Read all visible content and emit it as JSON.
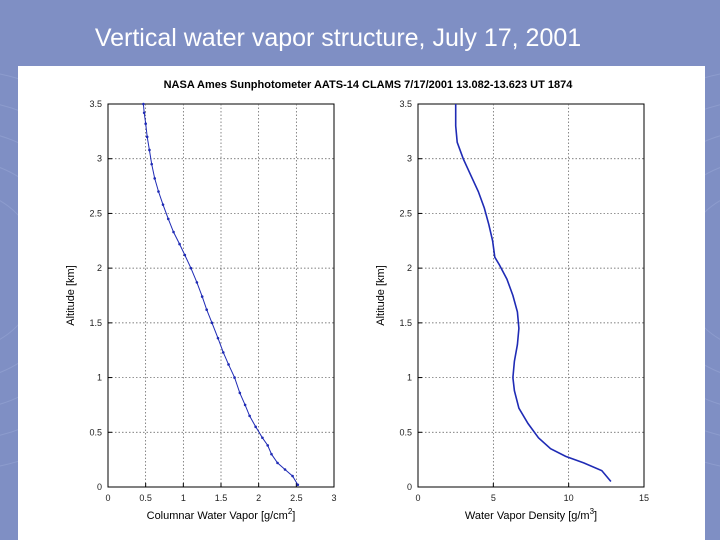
{
  "slide": {
    "title": "Vertical water vapor structure, July 17, 2001"
  },
  "figure": {
    "title": "NASA Ames Sunphotometer AATS-14 CLAMS  7/17/2001 13.082-13.623  UT  1874"
  },
  "colors": {
    "background": "#7f8fc4",
    "panel": "#ffffff",
    "series": "#1f2bb5",
    "grid": "#555555"
  },
  "chart_data": [
    {
      "type": "line",
      "xlabel": "Columnar Water Vapor [g/cm",
      "xlabel_sup": "2",
      "xlabel_end": "]",
      "ylabel": "Altitude [km]",
      "xlim": [
        0,
        3
      ],
      "ylim": [
        0,
        3.5
      ],
      "xticks": [
        0,
        0.5,
        1,
        1.5,
        2,
        2.5,
        3
      ],
      "xtick_labels": [
        "0",
        "0.5",
        "1",
        "1.5",
        "2",
        "2.5",
        "3"
      ],
      "yticks": [
        0,
        0.5,
        1,
        1.5,
        2,
        2.5,
        3,
        3.5
      ],
      "ytick_labels": [
        "0",
        "0.5",
        "1",
        "1.5",
        "2",
        "2.5",
        "3",
        "3.5"
      ],
      "grid": true,
      "series": [
        {
          "name": "Columnar Water Vapor",
          "marker": "dot",
          "points": [
            [
              2.52,
              0.02
            ],
            [
              2.45,
              0.1
            ],
            [
              2.35,
              0.16
            ],
            [
              2.25,
              0.22
            ],
            [
              2.17,
              0.3
            ],
            [
              2.12,
              0.38
            ],
            [
              2.05,
              0.45
            ],
            [
              1.96,
              0.55
            ],
            [
              1.88,
              0.65
            ],
            [
              1.82,
              0.75
            ],
            [
              1.75,
              0.86
            ],
            [
              1.68,
              1.0
            ],
            [
              1.6,
              1.12
            ],
            [
              1.53,
              1.23
            ],
            [
              1.46,
              1.36
            ],
            [
              1.38,
              1.5
            ],
            [
              1.31,
              1.62
            ],
            [
              1.25,
              1.74
            ],
            [
              1.18,
              1.87
            ],
            [
              1.1,
              2.0
            ],
            [
              1.02,
              2.12
            ],
            [
              0.95,
              2.22
            ],
            [
              0.87,
              2.33
            ],
            [
              0.8,
              2.45
            ],
            [
              0.73,
              2.58
            ],
            [
              0.67,
              2.7
            ],
            [
              0.62,
              2.82
            ],
            [
              0.58,
              2.95
            ],
            [
              0.55,
              3.08
            ],
            [
              0.52,
              3.2
            ],
            [
              0.5,
              3.32
            ],
            [
              0.48,
              3.42
            ],
            [
              0.47,
              3.5
            ]
          ]
        }
      ]
    },
    {
      "type": "line",
      "xlabel": "Water Vapor Density [g/m",
      "xlabel_sup": "3",
      "xlabel_end": "]",
      "ylabel": "Altitude [km]",
      "xlim": [
        0,
        15
      ],
      "ylim": [
        0,
        3.5
      ],
      "xticks": [
        0,
        5,
        10,
        15
      ],
      "xtick_labels": [
        "0",
        "5",
        "10",
        "15"
      ],
      "yticks": [
        0,
        0.5,
        1,
        1.5,
        2,
        2.5,
        3,
        3.5
      ],
      "ytick_labels": [
        "0",
        "0.5",
        "1",
        "1.5",
        "2",
        "2.5",
        "3",
        "3.5"
      ],
      "grid": true,
      "series": [
        {
          "name": "Water Vapor Density",
          "marker": "none",
          "points": [
            [
              12.8,
              0.05
            ],
            [
              12.2,
              0.15
            ],
            [
              11.0,
              0.22
            ],
            [
              9.8,
              0.28
            ],
            [
              8.8,
              0.35
            ],
            [
              8.0,
              0.45
            ],
            [
              7.3,
              0.58
            ],
            [
              6.7,
              0.72
            ],
            [
              6.4,
              0.88
            ],
            [
              6.3,
              1.0
            ],
            [
              6.4,
              1.15
            ],
            [
              6.6,
              1.3
            ],
            [
              6.7,
              1.45
            ],
            [
              6.6,
              1.6
            ],
            [
              6.3,
              1.75
            ],
            [
              5.9,
              1.9
            ],
            [
              5.4,
              2.03
            ],
            [
              5.1,
              2.1
            ],
            [
              4.95,
              2.25
            ],
            [
              4.7,
              2.4
            ],
            [
              4.4,
              2.55
            ],
            [
              4.0,
              2.7
            ],
            [
              3.5,
              2.85
            ],
            [
              3.0,
              3.0
            ],
            [
              2.6,
              3.15
            ],
            [
              2.5,
              3.3
            ],
            [
              2.5,
              3.45
            ],
            [
              2.5,
              3.5
            ]
          ]
        }
      ]
    }
  ]
}
